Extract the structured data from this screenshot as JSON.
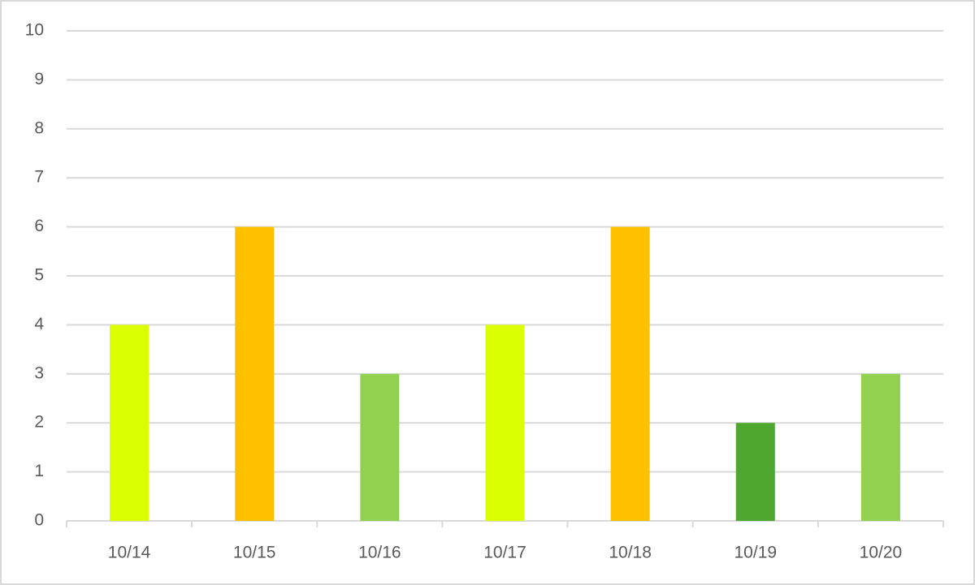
{
  "chart_data": {
    "type": "bar",
    "categories": [
      "10/14",
      "10/15",
      "10/16",
      "10/17",
      "10/18",
      "10/19",
      "10/20"
    ],
    "values": [
      4,
      6,
      3,
      4,
      6,
      2,
      3
    ],
    "colors": [
      "#daff00",
      "#ffc000",
      "#92d050",
      "#daff00",
      "#ffc000",
      "#4ea72e",
      "#92d050"
    ],
    "ylim": [
      0,
      10
    ],
    "yticks": [
      0,
      1,
      2,
      3,
      4,
      5,
      6,
      7,
      8,
      9,
      10
    ],
    "grid": true
  }
}
